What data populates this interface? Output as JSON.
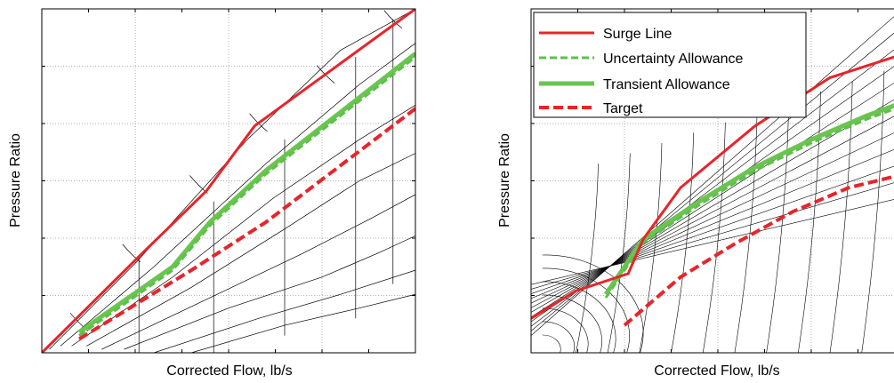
{
  "colors": {
    "surge": "#e8242b",
    "uncertainty": "#5cc14a",
    "transient": "#6ac54f",
    "target": "#e8242b",
    "grid": "#9a9a9a",
    "map": "#000000"
  },
  "chart_data": [
    {
      "type": "line",
      "title": "",
      "xlabel": "Corrected Flow, lb/s",
      "ylabel": "Pressure Ratio",
      "xlim": [
        0,
        1
      ],
      "ylim": [
        0,
        1
      ],
      "grid": true,
      "legend": "none",
      "series": [
        {
          "key": "surge",
          "x": [
            0.0,
            0.26,
            0.44,
            0.57,
            1.0
          ],
          "y": [
            0.0,
            0.28,
            0.47,
            0.66,
            1.0
          ]
        },
        {
          "key": "uncertainty",
          "x": [
            0.1,
            0.35,
            0.45,
            0.6,
            1.0
          ],
          "y": [
            0.05,
            0.24,
            0.37,
            0.52,
            0.86
          ]
        },
        {
          "key": "transient",
          "x": [
            0.1,
            0.35,
            0.45,
            0.6,
            1.0
          ],
          "y": [
            0.06,
            0.25,
            0.38,
            0.53,
            0.87
          ]
        },
        {
          "key": "target",
          "x": [
            0.1,
            0.4,
            0.6,
            1.0
          ],
          "y": [
            0.04,
            0.24,
            0.38,
            0.71
          ]
        }
      ]
    },
    {
      "type": "line",
      "title": "",
      "xlabel": "Corrected Flow, lb/s",
      "ylabel": "Pressure Ratio",
      "xlim": [
        0,
        1
      ],
      "ylim": [
        0,
        1
      ],
      "grid": true,
      "legend": "top-left",
      "series": [
        {
          "key": "surge",
          "name": "Surge Line",
          "x": [
            0.0,
            0.12,
            0.26,
            0.3,
            0.4,
            0.6,
            0.8,
            1.0
          ],
          "y": [
            0.1,
            0.18,
            0.23,
            0.33,
            0.48,
            0.66,
            0.8,
            0.87
          ]
        },
        {
          "key": "uncertainty",
          "name": "Uncertainty Allowance",
          "x": [
            0.2,
            0.3,
            0.45,
            0.6,
            0.75,
            0.9,
            1.0
          ],
          "y": [
            0.16,
            0.32,
            0.43,
            0.53,
            0.61,
            0.68,
            0.72
          ]
        },
        {
          "key": "transient",
          "name": "Transient Allowance",
          "x": [
            0.2,
            0.3,
            0.45,
            0.6,
            0.75,
            0.9,
            1.0
          ],
          "y": [
            0.17,
            0.33,
            0.44,
            0.54,
            0.62,
            0.69,
            0.73
          ]
        },
        {
          "key": "target",
          "name": "Target",
          "x": [
            0.25,
            0.4,
            0.55,
            0.7,
            0.85,
            1.0
          ],
          "y": [
            0.08,
            0.22,
            0.32,
            0.41,
            0.48,
            0.52
          ]
        }
      ]
    }
  ]
}
